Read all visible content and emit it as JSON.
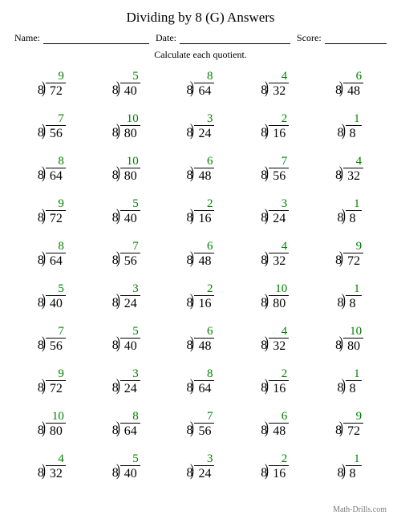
{
  "title": "Dividing by 8 (G) Answers",
  "header": {
    "name_label": "Name:",
    "date_label": "Date:",
    "score_label": "Score:"
  },
  "instruction": "Calculate each quotient.",
  "footer": "Math-Drills.com",
  "quotient_color": "#008000",
  "divisor": 8,
  "problems": [
    [
      {
        "d": 72,
        "q": 9
      },
      {
        "d": 40,
        "q": 5
      },
      {
        "d": 64,
        "q": 8
      },
      {
        "d": 32,
        "q": 4
      },
      {
        "d": 48,
        "q": 6
      }
    ],
    [
      {
        "d": 56,
        "q": 7
      },
      {
        "d": 80,
        "q": 10
      },
      {
        "d": 24,
        "q": 3
      },
      {
        "d": 16,
        "q": 2
      },
      {
        "d": 8,
        "q": 1
      }
    ],
    [
      {
        "d": 64,
        "q": 8
      },
      {
        "d": 80,
        "q": 10
      },
      {
        "d": 48,
        "q": 6
      },
      {
        "d": 56,
        "q": 7
      },
      {
        "d": 32,
        "q": 4
      }
    ],
    [
      {
        "d": 72,
        "q": 9
      },
      {
        "d": 40,
        "q": 5
      },
      {
        "d": 16,
        "q": 2
      },
      {
        "d": 24,
        "q": 3
      },
      {
        "d": 8,
        "q": 1
      }
    ],
    [
      {
        "d": 64,
        "q": 8
      },
      {
        "d": 56,
        "q": 7
      },
      {
        "d": 48,
        "q": 6
      },
      {
        "d": 32,
        "q": 4
      },
      {
        "d": 72,
        "q": 9
      }
    ],
    [
      {
        "d": 40,
        "q": 5
      },
      {
        "d": 24,
        "q": 3
      },
      {
        "d": 16,
        "q": 2
      },
      {
        "d": 80,
        "q": 10
      },
      {
        "d": 8,
        "q": 1
      }
    ],
    [
      {
        "d": 56,
        "q": 7
      },
      {
        "d": 40,
        "q": 5
      },
      {
        "d": 48,
        "q": 6
      },
      {
        "d": 32,
        "q": 4
      },
      {
        "d": 80,
        "q": 10
      }
    ],
    [
      {
        "d": 72,
        "q": 9
      },
      {
        "d": 24,
        "q": 3
      },
      {
        "d": 64,
        "q": 8
      },
      {
        "d": 16,
        "q": 2
      },
      {
        "d": 8,
        "q": 1
      }
    ],
    [
      {
        "d": 80,
        "q": 10
      },
      {
        "d": 64,
        "q": 8
      },
      {
        "d": 56,
        "q": 7
      },
      {
        "d": 48,
        "q": 6
      },
      {
        "d": 72,
        "q": 9
      }
    ],
    [
      {
        "d": 32,
        "q": 4
      },
      {
        "d": 40,
        "q": 5
      },
      {
        "d": 24,
        "q": 3
      },
      {
        "d": 16,
        "q": 2
      },
      {
        "d": 8,
        "q": 1
      }
    ]
  ]
}
